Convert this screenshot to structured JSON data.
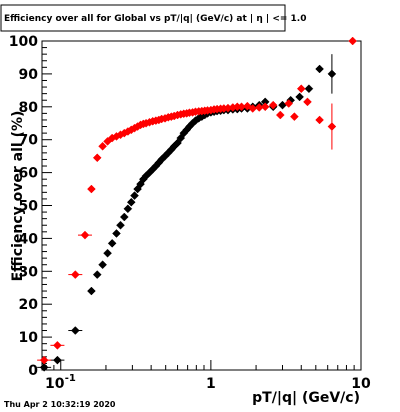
{
  "timestamp": "Thu Apr  2 10:32:19 2020",
  "chart_data": {
    "type": "scatter",
    "title": "Efficiency over all for Global vs pT/|q| (GeV/c) at |  η  | <= 1.0",
    "xlabel": "pT/|q| (GeV/c)",
    "ylabel": "Efficiency over all (%)",
    "xscale": "log",
    "xlim": [
      0.075,
      10
    ],
    "ylim": [
      0,
      100
    ],
    "x_tick_labels": [
      "10^-1",
      "1",
      "10"
    ],
    "y_tick_labels": [
      "0",
      "10",
      "20",
      "30",
      "40",
      "50",
      "60",
      "70",
      "80",
      "90",
      "100"
    ],
    "grid": false,
    "legend": "none",
    "series": [
      {
        "color": "#000000",
        "points": [
          {
            "x": 0.0775,
            "y": 0.8
          },
          {
            "x": 0.095,
            "y": 3.0
          },
          {
            "x": 0.125,
            "y": 12.0
          },
          {
            "x": 0.16,
            "y": 24.0
          },
          {
            "x": 0.175,
            "y": 29.0
          },
          {
            "x": 0.19,
            "y": 32.0
          },
          {
            "x": 0.205,
            "y": 35.5
          },
          {
            "x": 0.22,
            "y": 38.5
          },
          {
            "x": 0.235,
            "y": 41.5
          },
          {
            "x": 0.25,
            "y": 44.0
          },
          {
            "x": 0.265,
            "y": 46.5
          },
          {
            "x": 0.28,
            "y": 49.0
          },
          {
            "x": 0.295,
            "y": 51.0
          },
          {
            "x": 0.31,
            "y": 53.0
          },
          {
            "x": 0.325,
            "y": 55.0
          },
          {
            "x": 0.34,
            "y": 56.5
          },
          {
            "x": 0.355,
            "y": 58.0
          },
          {
            "x": 0.37,
            "y": 59.0
          },
          {
            "x": 0.39,
            "y": 60.0
          },
          {
            "x": 0.41,
            "y": 61.0
          },
          {
            "x": 0.43,
            "y": 62.0
          },
          {
            "x": 0.45,
            "y": 63.0
          },
          {
            "x": 0.47,
            "y": 64.0
          },
          {
            "x": 0.495,
            "y": 65.0
          },
          {
            "x": 0.52,
            "y": 66.0
          },
          {
            "x": 0.545,
            "y": 67.0
          },
          {
            "x": 0.57,
            "y": 68.0
          },
          {
            "x": 0.6,
            "y": 69.0
          },
          {
            "x": 0.63,
            "y": 70.5
          },
          {
            "x": 0.66,
            "y": 72.0
          },
          {
            "x": 0.69,
            "y": 73.0
          },
          {
            "x": 0.72,
            "y": 74.0
          },
          {
            "x": 0.755,
            "y": 75.0
          },
          {
            "x": 0.79,
            "y": 75.8
          },
          {
            "x": 0.83,
            "y": 76.5
          },
          {
            "x": 0.87,
            "y": 77.0
          },
          {
            "x": 0.91,
            "y": 77.5
          },
          {
            "x": 0.95,
            "y": 78.0
          },
          {
            "x": 1.0,
            "y": 78.3
          },
          {
            "x": 1.05,
            "y": 78.5
          },
          {
            "x": 1.1,
            "y": 78.7
          },
          {
            "x": 1.16,
            "y": 78.8
          },
          {
            "x": 1.22,
            "y": 79.0
          },
          {
            "x": 1.3,
            "y": 79.0
          },
          {
            "x": 1.4,
            "y": 79.2
          },
          {
            "x": 1.5,
            "y": 79.3
          },
          {
            "x": 1.6,
            "y": 79.5
          },
          {
            "x": 1.75,
            "y": 79.5
          },
          {
            "x": 1.9,
            "y": 80.0
          },
          {
            "x": 2.1,
            "y": 80.5
          },
          {
            "x": 2.3,
            "y": 81.5
          },
          {
            "x": 2.6,
            "y": 80.0
          },
          {
            "x": 3.0,
            "y": 80.5
          },
          {
            "x": 3.4,
            "y": 82.0
          },
          {
            "x": 3.9,
            "y": 83.0
          },
          {
            "x": 4.5,
            "y": 85.5
          },
          {
            "x": 5.3,
            "y": 91.5
          },
          {
            "x": 6.4,
            "y": 90.0,
            "err": 6.0
          }
        ]
      },
      {
        "color": "#ff0000",
        "points": [
          {
            "x": 0.0775,
            "y": 3.0
          },
          {
            "x": 0.095,
            "y": 7.5
          },
          {
            "x": 0.125,
            "y": 29.0
          },
          {
            "x": 0.145,
            "y": 41.0
          },
          {
            "x": 0.16,
            "y": 55.0
          },
          {
            "x": 0.175,
            "y": 64.5
          },
          {
            "x": 0.19,
            "y": 68.0
          },
          {
            "x": 0.205,
            "y": 69.5
          },
          {
            "x": 0.22,
            "y": 70.5
          },
          {
            "x": 0.235,
            "y": 71.0
          },
          {
            "x": 0.25,
            "y": 71.5
          },
          {
            "x": 0.265,
            "y": 72.0
          },
          {
            "x": 0.28,
            "y": 72.5
          },
          {
            "x": 0.295,
            "y": 73.0
          },
          {
            "x": 0.31,
            "y": 73.5
          },
          {
            "x": 0.325,
            "y": 74.0
          },
          {
            "x": 0.34,
            "y": 74.5
          },
          {
            "x": 0.355,
            "y": 74.8
          },
          {
            "x": 0.37,
            "y": 75.0
          },
          {
            "x": 0.39,
            "y": 75.3
          },
          {
            "x": 0.41,
            "y": 75.6
          },
          {
            "x": 0.43,
            "y": 75.8
          },
          {
            "x": 0.45,
            "y": 76.0
          },
          {
            "x": 0.47,
            "y": 76.3
          },
          {
            "x": 0.495,
            "y": 76.5
          },
          {
            "x": 0.52,
            "y": 76.8
          },
          {
            "x": 0.545,
            "y": 77.0
          },
          {
            "x": 0.57,
            "y": 77.2
          },
          {
            "x": 0.6,
            "y": 77.5
          },
          {
            "x": 0.63,
            "y": 77.7
          },
          {
            "x": 0.66,
            "y": 77.9
          },
          {
            "x": 0.69,
            "y": 78.0
          },
          {
            "x": 0.72,
            "y": 78.2
          },
          {
            "x": 0.755,
            "y": 78.3
          },
          {
            "x": 0.79,
            "y": 78.5
          },
          {
            "x": 0.83,
            "y": 78.6
          },
          {
            "x": 0.87,
            "y": 78.7
          },
          {
            "x": 0.91,
            "y": 78.8
          },
          {
            "x": 0.95,
            "y": 78.9
          },
          {
            "x": 1.0,
            "y": 79.0
          },
          {
            "x": 1.05,
            "y": 79.2
          },
          {
            "x": 1.1,
            "y": 79.3
          },
          {
            "x": 1.16,
            "y": 79.4
          },
          {
            "x": 1.22,
            "y": 79.5
          },
          {
            "x": 1.3,
            "y": 79.6
          },
          {
            "x": 1.4,
            "y": 79.8
          },
          {
            "x": 1.5,
            "y": 80.0
          },
          {
            "x": 1.6,
            "y": 80.0
          },
          {
            "x": 1.75,
            "y": 80.2
          },
          {
            "x": 1.9,
            "y": 79.5
          },
          {
            "x": 2.1,
            "y": 79.8
          },
          {
            "x": 2.3,
            "y": 80.0
          },
          {
            "x": 2.6,
            "y": 80.5
          },
          {
            "x": 2.9,
            "y": 77.5
          },
          {
            "x": 3.3,
            "y": 81.0
          },
          {
            "x": 3.6,
            "y": 77.0
          },
          {
            "x": 4.0,
            "y": 85.5
          },
          {
            "x": 4.4,
            "y": 81.5
          },
          {
            "x": 5.3,
            "y": 76.0
          },
          {
            "x": 6.4,
            "y": 74.0,
            "err": 7.0
          },
          {
            "x": 8.8,
            "y": 100.0
          }
        ]
      }
    ]
  }
}
